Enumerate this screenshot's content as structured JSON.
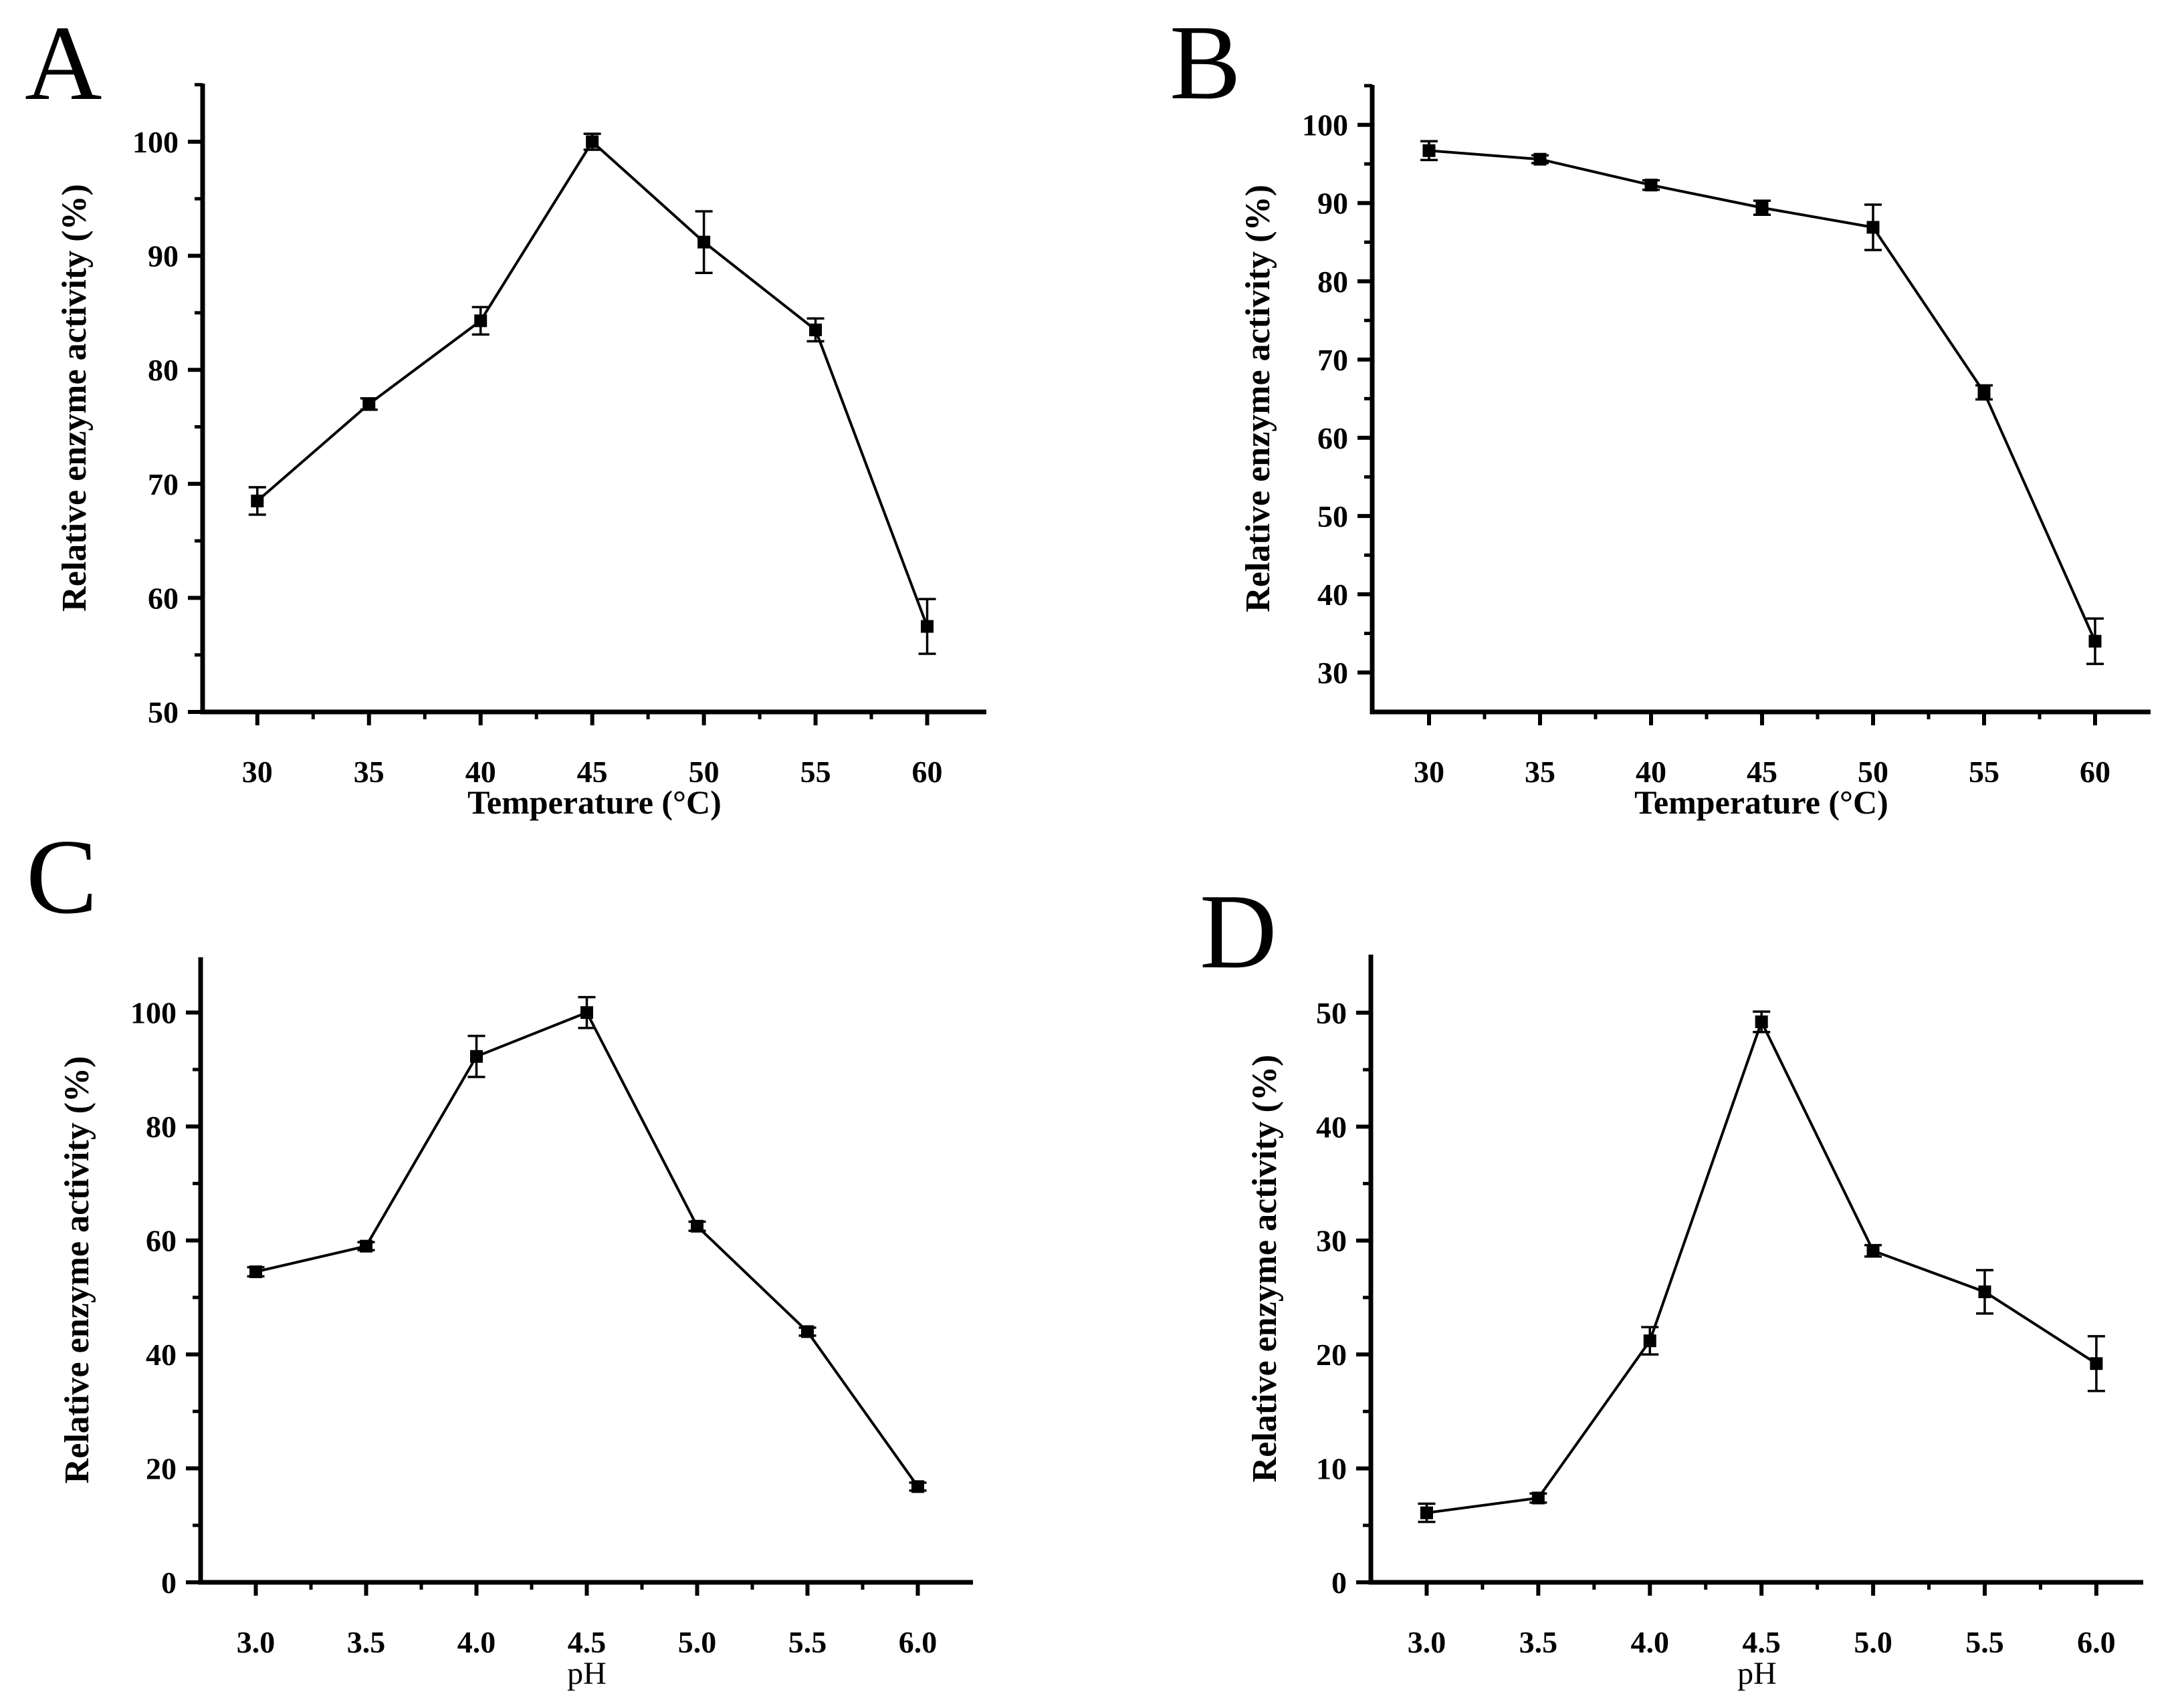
{
  "figure": {
    "background": "#ffffff",
    "ink_color": "#000000",
    "description": "Four-panel line figure of relative enzyme activity versus temperature (A, B) and pH (C, D), black filled-square markers with error bars"
  },
  "chart_data": [
    {
      "panel_label": "A",
      "type": "line",
      "xlabel": "Temperature (°C)",
      "ylabel": "Relative enzyme activity (%)",
      "x": [
        30,
        35,
        40,
        45,
        50,
        55,
        60
      ],
      "y": [
        68.5,
        77.0,
        84.3,
        100.0,
        91.2,
        83.5,
        57.5
      ],
      "yerr": [
        1.2,
        0.5,
        1.2,
        0.7,
        2.7,
        1.0,
        2.4
      ],
      "xticks": [
        30,
        35,
        40,
        45,
        50,
        55,
        60
      ],
      "xtick_labels": [
        "30",
        "35",
        "40",
        "45",
        "50",
        "55",
        "60"
      ],
      "x_minor_ticks": [
        32.5,
        37.5,
        42.5,
        47.5,
        52.5,
        57.5
      ],
      "yticks": [
        50,
        60,
        70,
        80,
        90,
        100
      ],
      "ytick_labels": [
        "50",
        "60",
        "70",
        "80",
        "90",
        "100"
      ],
      "y_minor_ticks": [
        55,
        65,
        75,
        85,
        95,
        105
      ],
      "xlim": [
        27.55,
        62.65
      ],
      "ylim": [
        50,
        105.1
      ],
      "grid": false,
      "legend": null,
      "marker": "filled-square",
      "error_bars": true,
      "line_color": "#000000"
    },
    {
      "panel_label": "B",
      "type": "line",
      "xlabel": "Temperature (°C)",
      "ylabel": "Relative enzyme activity (%)",
      "x": [
        30,
        35,
        40,
        45,
        50,
        55,
        60
      ],
      "y": [
        96.7,
        95.6,
        92.3,
        89.4,
        86.9,
        65.8,
        34.0
      ],
      "yerr": [
        1.2,
        0.5,
        0.6,
        0.9,
        2.9,
        0.9,
        2.9
      ],
      "xticks": [
        30,
        35,
        40,
        45,
        50,
        55,
        60
      ],
      "xtick_labels": [
        "30",
        "35",
        "40",
        "45",
        "50",
        "55",
        "60"
      ],
      "x_minor_ticks": [
        32.5,
        37.5,
        42.5,
        47.5,
        52.5,
        57.5
      ],
      "yticks": [
        30,
        40,
        50,
        60,
        70,
        80,
        90,
        100
      ],
      "ytick_labels": [
        "30",
        "40",
        "50",
        "60",
        "70",
        "80",
        "90",
        "100"
      ],
      "y_minor_ticks": [
        35,
        45,
        55,
        65,
        75,
        85,
        95,
        105
      ],
      "xlim": [
        27.44,
        62.5
      ],
      "ylim": [
        24.96,
        105.1
      ],
      "grid": false,
      "legend": null,
      "marker": "filled-square",
      "error_bars": true,
      "line_color": "#000000"
    },
    {
      "panel_label": "C",
      "type": "line",
      "xlabel": "pH",
      "ylabel": "Relative enzyme activity (%)",
      "x": [
        3.0,
        3.5,
        4.0,
        4.5,
        5.0,
        5.5,
        6.0
      ],
      "y": [
        54.5,
        59.0,
        92.3,
        100.0,
        62.5,
        44.0,
        16.8
      ],
      "yerr": [
        0.8,
        0.7,
        3.6,
        2.7,
        0.8,
        0.7,
        0.7
      ],
      "xticks": [
        3.0,
        3.5,
        4.0,
        4.5,
        5.0,
        5.5,
        6.0
      ],
      "xtick_labels": [
        "3.0",
        "3.5",
        "4.0",
        "4.5",
        "5.0",
        "5.5",
        "6.0"
      ],
      "x_minor_ticks": [
        3.25,
        3.75,
        4.25,
        4.75,
        5.25,
        5.75
      ],
      "yticks": [
        0,
        20,
        40,
        60,
        80,
        100
      ],
      "ytick_labels": [
        "0",
        "20",
        "40",
        "60",
        "80",
        "100"
      ],
      "y_minor_ticks": [
        10,
        30,
        50,
        70,
        90
      ],
      "xlim": [
        2.75,
        6.25
      ],
      "ylim": [
        0,
        109.7
      ],
      "grid": false,
      "legend": null,
      "marker": "filled-square",
      "error_bars": true,
      "line_color": "#000000"
    },
    {
      "panel_label": "D",
      "type": "line",
      "xlabel": "pH",
      "ylabel": "Relative enzyme activity (%)",
      "x": [
        3.0,
        3.5,
        4.0,
        4.5,
        5.0,
        5.5,
        6.0
      ],
      "y": [
        6.1,
        7.4,
        21.2,
        49.2,
        29.1,
        25.5,
        19.2
      ],
      "yerr": [
        0.8,
        0.4,
        1.2,
        0.9,
        0.5,
        1.9,
        2.4
      ],
      "xticks": [
        3.0,
        3.5,
        4.0,
        4.5,
        5.0,
        5.5,
        6.0
      ],
      "xtick_labels": [
        "3.0",
        "3.5",
        "4.0",
        "4.5",
        "5.0",
        "5.5",
        "6.0"
      ],
      "x_minor_ticks": [
        3.25,
        3.75,
        4.25,
        4.75,
        5.25,
        5.75
      ],
      "yticks": [
        0,
        10,
        20,
        30,
        40,
        50
      ],
      "ytick_labels": [
        "0",
        "10",
        "20",
        "30",
        "40",
        "50"
      ],
      "y_minor_ticks": [
        5,
        15,
        25,
        35,
        45
      ],
      "xlim": [
        2.75,
        6.21
      ],
      "ylim": [
        0,
        55.1
      ],
      "grid": false,
      "legend": null,
      "marker": "filled-square",
      "error_bars": true,
      "line_color": "#000000"
    }
  ]
}
